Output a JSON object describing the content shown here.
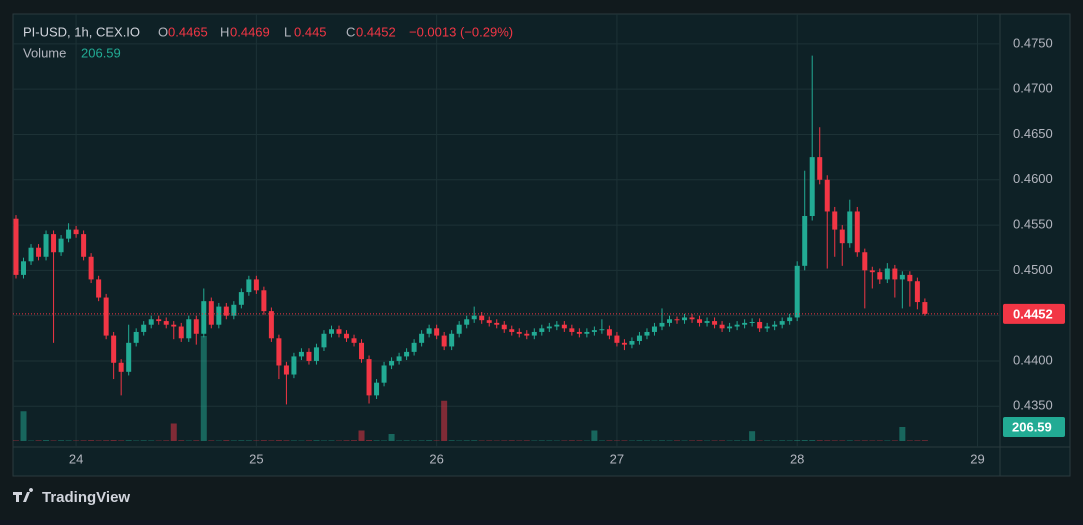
{
  "chart_data": {
    "type": "candlestick",
    "title": "PI-USD, 1h, CEX.IO",
    "ohlc_labels": [
      "O",
      "H",
      "L",
      "C"
    ],
    "change": "−0.0013 (−0.29%)",
    "volume_label": "Volume",
    "brand": "TradingView",
    "up_color": "#22ab94",
    "down_color": "#f23645",
    "x": [
      23.6667,
      23.7083,
      23.75,
      23.7917,
      23.8333,
      23.875,
      23.9167,
      23.9583,
      24,
      24.0417,
      24.0833,
      24.125,
      24.1667,
      24.2083,
      24.25,
      24.2917,
      24.3333,
      24.375,
      24.4167,
      24.4583,
      24.5,
      24.5417,
      24.5833,
      24.625,
      24.6667,
      24.7083,
      24.75,
      24.7917,
      24.8333,
      24.875,
      24.9167,
      24.9583,
      25,
      25.0417,
      25.0833,
      25.125,
      25.1667,
      25.2083,
      25.25,
      25.2917,
      25.3333,
      25.375,
      25.4167,
      25.4583,
      25.5,
      25.5417,
      25.5833,
      25.625,
      25.6667,
      25.7083,
      25.75,
      25.7917,
      25.8333,
      25.875,
      25.9167,
      25.9583,
      26,
      26.0417,
      26.0833,
      26.125,
      26.1667,
      26.2083,
      26.25,
      26.2917,
      26.3333,
      26.375,
      26.4167,
      26.4583,
      26.5,
      26.5417,
      26.5833,
      26.625,
      26.6667,
      26.7083,
      26.75,
      26.7917,
      26.8333,
      26.875,
      26.9167,
      26.9583,
      27,
      27.0417,
      27.0833,
      27.125,
      27.1667,
      27.2083,
      27.25,
      27.2917,
      27.3333,
      27.375,
      27.4167,
      27.4583,
      27.5,
      27.5417,
      27.5833,
      27.625,
      27.6667,
      27.7083,
      27.75,
      27.7917,
      27.8333,
      27.875,
      27.9167,
      27.9583,
      28,
      28.0417,
      28.0833,
      28.125,
      28.1667,
      28.2083,
      28.25,
      28.2917,
      28.3333,
      28.375,
      28.4167,
      28.4583,
      28.5,
      28.5417,
      28.5833,
      28.625,
      28.6667,
      28.7083
    ],
    "open": [
      0.4557,
      0.4495,
      0.451,
      0.4525,
      0.4515,
      0.454,
      0.452,
      0.4535,
      0.4545,
      0.454,
      0.4515,
      0.449,
      0.447,
      0.4428,
      0.4398,
      0.4388,
      0.442,
      0.4432,
      0.444,
      0.4446,
      0.4444,
      0.444,
      0.4438,
      0.4425,
      0.4446,
      0.443,
      0.4466,
      0.444,
      0.446,
      0.445,
      0.4462,
      0.4476,
      0.449,
      0.4478,
      0.4455,
      0.4425,
      0.4395,
      0.4385,
      0.4405,
      0.441,
      0.44,
      0.4415,
      0.443,
      0.4435,
      0.443,
      0.4425,
      0.442,
      0.4402,
      0.4362,
      0.4376,
      0.4395,
      0.44,
      0.4405,
      0.441,
      0.442,
      0.443,
      0.4436,
      0.4428,
      0.4416,
      0.443,
      0.444,
      0.4446,
      0.445,
      0.4445,
      0.4442,
      0.444,
      0.4435,
      0.4432,
      0.443,
      0.4428,
      0.4432,
      0.4436,
      0.4438,
      0.444,
      0.4436,
      0.4432,
      0.443,
      0.4432,
      0.4434,
      0.4435,
      0.4428,
      0.442,
      0.4418,
      0.4422,
      0.4428,
      0.4432,
      0.4438,
      0.4442,
      0.4446,
      0.4445,
      0.4448,
      0.4446,
      0.4442,
      0.4444,
      0.444,
      0.4436,
      0.4438,
      0.444,
      0.4442,
      0.4443,
      0.4436,
      0.4438,
      0.444,
      0.4444,
      0.4448,
      0.4505,
      0.456,
      0.4625,
      0.46,
      0.4565,
      0.4545,
      0.453,
      0.4565,
      0.452,
      0.45,
      0.4498,
      0.449,
      0.4502,
      0.449,
      0.4495,
      0.4488,
      0.4465
    ],
    "high": [
      0.4561,
      0.4514,
      0.4529,
      0.4529,
      0.4544,
      0.4544,
      0.4539,
      0.4552,
      0.4549,
      0.4544,
      0.4519,
      0.4494,
      0.4474,
      0.4432,
      0.4402,
      0.444,
      0.4436,
      0.4444,
      0.445,
      0.445,
      0.4448,
      0.4444,
      0.4442,
      0.445,
      0.445,
      0.448,
      0.447,
      0.4464,
      0.4464,
      0.4466,
      0.448,
      0.4494,
      0.4494,
      0.4482,
      0.4459,
      0.4429,
      0.4399,
      0.4409,
      0.4414,
      0.4414,
      0.4419,
      0.4434,
      0.4439,
      0.4439,
      0.4434,
      0.4429,
      0.4424,
      0.4406,
      0.438,
      0.4399,
      0.4404,
      0.4409,
      0.4414,
      0.4424,
      0.4434,
      0.444,
      0.444,
      0.4432,
      0.4434,
      0.4444,
      0.445,
      0.446,
      0.4454,
      0.4449,
      0.4446,
      0.4444,
      0.4439,
      0.4436,
      0.4434,
      0.4436,
      0.444,
      0.4442,
      0.4444,
      0.4444,
      0.444,
      0.4436,
      0.4436,
      0.4438,
      0.4446,
      0.4439,
      0.4432,
      0.4424,
      0.4426,
      0.4432,
      0.4436,
      0.4442,
      0.4458,
      0.445,
      0.4449,
      0.4452,
      0.4452,
      0.445,
      0.4448,
      0.4448,
      0.4444,
      0.4442,
      0.4444,
      0.4446,
      0.4447,
      0.4447,
      0.4442,
      0.4444,
      0.4448,
      0.4452,
      0.451,
      0.461,
      0.4737,
      0.4658,
      0.4605,
      0.457,
      0.455,
      0.4578,
      0.457,
      0.4524,
      0.4504,
      0.4502,
      0.4508,
      0.4506,
      0.4499,
      0.4499,
      0.4492,
      0.4469
    ],
    "low": [
      0.4491,
      0.4491,
      0.4506,
      0.4511,
      0.4511,
      0.442,
      0.4516,
      0.4531,
      0.4536,
      0.4511,
      0.4486,
      0.4466,
      0.4424,
      0.438,
      0.4362,
      0.4384,
      0.4416,
      0.4428,
      0.4436,
      0.444,
      0.4436,
      0.4424,
      0.4421,
      0.4421,
      0.4418,
      0.4426,
      0.4436,
      0.4436,
      0.4446,
      0.4446,
      0.4458,
      0.4472,
      0.4474,
      0.4451,
      0.4421,
      0.438,
      0.4352,
      0.4381,
      0.4401,
      0.4396,
      0.4396,
      0.4411,
      0.4426,
      0.4426,
      0.4421,
      0.4416,
      0.4398,
      0.4353,
      0.4358,
      0.4372,
      0.4391,
      0.4396,
      0.4401,
      0.4406,
      0.4416,
      0.4426,
      0.4424,
      0.4412,
      0.4412,
      0.4426,
      0.4436,
      0.4442,
      0.4441,
      0.4438,
      0.4436,
      0.4431,
      0.4428,
      0.4426,
      0.4424,
      0.4424,
      0.4428,
      0.4432,
      0.4434,
      0.4432,
      0.4428,
      0.4426,
      0.4426,
      0.4428,
      0.443,
      0.4424,
      0.4416,
      0.4412,
      0.4414,
      0.4418,
      0.4424,
      0.4428,
      0.4434,
      0.4438,
      0.4441,
      0.4441,
      0.4442,
      0.4438,
      0.4438,
      0.4436,
      0.4432,
      0.4432,
      0.4434,
      0.4436,
      0.4438,
      0.4432,
      0.4432,
      0.4434,
      0.4436,
      0.444,
      0.4444,
      0.45,
      0.4555,
      0.4595,
      0.4502,
      0.4515,
      0.4505,
      0.4525,
      0.4515,
      0.4458,
      0.448,
      0.4485,
      0.4486,
      0.447,
      0.4458,
      0.446,
      0.4457,
      0.445
    ],
    "close": [
      0.4495,
      0.451,
      0.4525,
      0.4515,
      0.454,
      0.452,
      0.4535,
      0.4545,
      0.454,
      0.4515,
      0.449,
      0.447,
      0.4428,
      0.4398,
      0.4388,
      0.442,
      0.4432,
      0.444,
      0.4446,
      0.4444,
      0.444,
      0.4438,
      0.4425,
      0.4446,
      0.443,
      0.4466,
      0.444,
      0.446,
      0.445,
      0.4462,
      0.4476,
      0.449,
      0.4478,
      0.4455,
      0.4425,
      0.4395,
      0.4385,
      0.4405,
      0.441,
      0.44,
      0.4415,
      0.443,
      0.4435,
      0.443,
      0.4425,
      0.442,
      0.4402,
      0.4362,
      0.4376,
      0.4395,
      0.44,
      0.4405,
      0.441,
      0.442,
      0.443,
      0.4436,
      0.4428,
      0.4416,
      0.443,
      0.444,
      0.4446,
      0.445,
      0.4445,
      0.4442,
      0.444,
      0.4435,
      0.4432,
      0.443,
      0.4428,
      0.4432,
      0.4436,
      0.4438,
      0.444,
      0.4436,
      0.4432,
      0.443,
      0.4432,
      0.4434,
      0.4435,
      0.4428,
      0.442,
      0.4418,
      0.4422,
      0.4428,
      0.4432,
      0.4438,
      0.4442,
      0.4446,
      0.4445,
      0.4448,
      0.4446,
      0.4442,
      0.4444,
      0.444,
      0.4436,
      0.4438,
      0.444,
      0.4442,
      0.4443,
      0.4436,
      0.4438,
      0.444,
      0.4444,
      0.4448,
      0.4505,
      0.456,
      0.4625,
      0.46,
      0.4565,
      0.4545,
      0.453,
      0.4565,
      0.452,
      0.45,
      0.4498,
      0.449,
      0.4502,
      0.449,
      0.4495,
      0.4488,
      0.4465,
      0.4452
    ],
    "volume": [
      150,
      8500,
      120,
      180,
      250,
      140,
      200,
      160,
      130,
      170,
      220,
      150,
      190,
      240,
      160,
      210,
      130,
      180,
      150,
      120,
      170,
      5000,
      200,
      140,
      180,
      30000,
      160,
      130,
      220,
      150,
      190,
      170,
      140,
      210,
      160,
      230,
      180,
      150,
      120,
      170,
      200,
      140,
      160,
      130,
      190,
      220,
      3000,
      250,
      180,
      150,
      2000,
      140,
      170,
      130,
      160,
      210,
      150,
      11500,
      200,
      140,
      170,
      190,
      130,
      160,
      120,
      150,
      180,
      140,
      170,
      130,
      160,
      150,
      120,
      140,
      180,
      160,
      130,
      3000,
      150,
      170,
      140,
      160,
      130,
      180,
      150,
      120,
      170,
      140,
      160,
      130,
      150,
      190,
      120,
      140,
      160,
      130,
      170,
      150,
      2800,
      140,
      160,
      130,
      180,
      150,
      220,
      260,
      240,
      200,
      180,
      160,
      150,
      170,
      140,
      160,
      130,
      150,
      140,
      160,
      4000,
      150,
      170,
      206.59
    ],
    "xlim": [
      23.65,
      29.125
    ],
    "xticks": [
      24,
      25,
      26,
      27,
      28,
      29
    ],
    "ylim": [
      0.4305,
      0.4783
    ],
    "yticks": [
      {
        "value": 0.435,
        "label": "0.4350"
      },
      {
        "value": 0.44,
        "label": "0.4400"
      },
      {
        "value": 0.445,
        "label": "0.4450"
      },
      {
        "value": 0.45,
        "label": "0.4500"
      },
      {
        "value": 0.455,
        "label": "0.4550"
      },
      {
        "value": 0.46,
        "label": "0.4600"
      },
      {
        "value": 0.465,
        "label": "0.4650"
      },
      {
        "value": 0.47,
        "label": "0.4700"
      },
      {
        "value": 0.475,
        "label": "0.4750"
      }
    ],
    "grid": true
  }
}
